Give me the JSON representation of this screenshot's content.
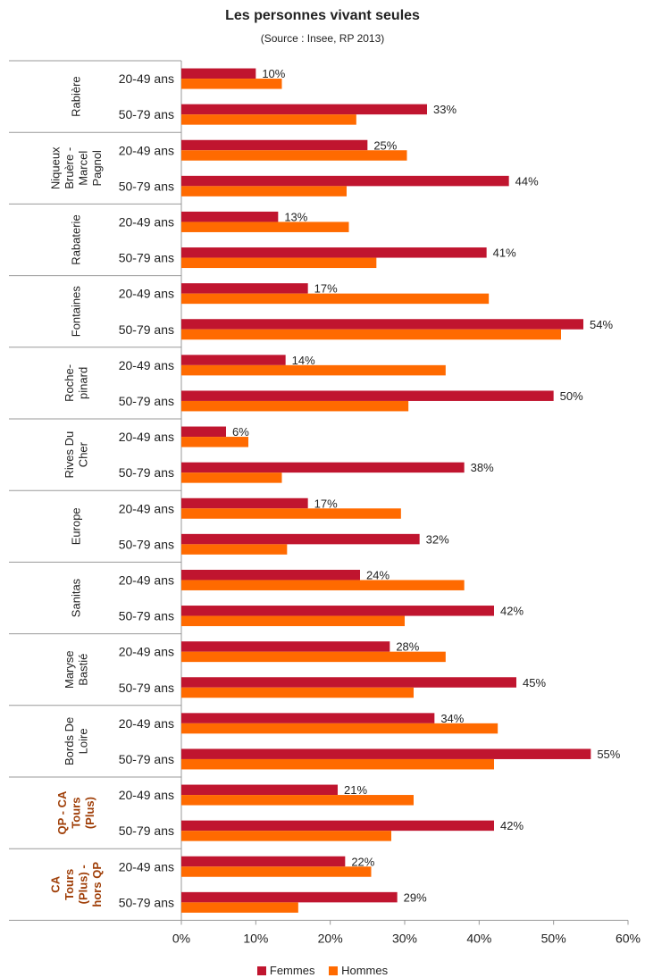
{
  "chart_data": {
    "type": "bar",
    "title": "Les personnes vivant seules",
    "subtitle": "(Source : Insee, RP 2013)",
    "orientation": "horizontal",
    "xlim": [
      0,
      60
    ],
    "xticks": [
      "0%",
      "10%",
      "20%",
      "30%",
      "40%",
      "50%",
      "60%"
    ],
    "groups": [
      {
        "label": "Rabière",
        "highlight": false
      },
      {
        "label": "Niqueux Bruère - Marcel Pagnol",
        "highlight": false
      },
      {
        "label": "Rabaterie",
        "highlight": false
      },
      {
        "label": "Fontaines",
        "highlight": false
      },
      {
        "label": "Roche-pinard",
        "highlight": false
      },
      {
        "label": "Rives Du Cher",
        "highlight": false
      },
      {
        "label": "Europe",
        "highlight": false
      },
      {
        "label": "Sanitas",
        "highlight": false
      },
      {
        "label": "Maryse Bastié",
        "highlight": false
      },
      {
        "label": "Bords De Loire",
        "highlight": false
      },
      {
        "label": "QP - CA Tours (Plus)",
        "highlight": true
      },
      {
        "label": "CA Tours (Plus) - hors QP",
        "highlight": true
      }
    ],
    "group_label_lines": [
      [
        "Rabière"
      ],
      [
        "Niqueux",
        "Bruère -",
        "Marcel",
        "Pagnol"
      ],
      [
        "Rabaterie"
      ],
      [
        "Fontaines"
      ],
      [
        "Roche-",
        "pinard"
      ],
      [
        "Rives Du",
        "Cher"
      ],
      [
        "Europe"
      ],
      [
        "Sanitas"
      ],
      [
        "Maryse",
        "Bastié"
      ],
      [
        "Bords De",
        "Loire"
      ],
      [
        "QP - CA",
        "Tours",
        "(Plus)"
      ],
      [
        "CA",
        "Tours",
        "(Plus) -",
        "hors QP"
      ]
    ],
    "categories": [
      "20-49 ans",
      "50-79 ans"
    ],
    "series": [
      {
        "name": "Femmes",
        "color": "#C0152F",
        "values": [
          [
            10,
            33
          ],
          [
            25,
            44
          ],
          [
            13,
            41
          ],
          [
            17,
            54
          ],
          [
            14,
            50
          ],
          [
            6,
            38
          ],
          [
            17,
            32
          ],
          [
            24,
            42
          ],
          [
            28,
            45
          ],
          [
            34,
            55
          ],
          [
            21,
            42
          ],
          [
            22,
            29
          ]
        ],
        "labels": [
          [
            "10%",
            "33%"
          ],
          [
            "25%",
            "44%"
          ],
          [
            "13%",
            "41%"
          ],
          [
            "17%",
            "54%"
          ],
          [
            "14%",
            "50%"
          ],
          [
            "6%",
            "38%"
          ],
          [
            "17%",
            "32%"
          ],
          [
            "24%",
            "42%"
          ],
          [
            "28%",
            "45%"
          ],
          [
            "34%",
            "55%"
          ],
          [
            "21%",
            "42%"
          ],
          [
            "22%",
            "29%"
          ]
        ]
      },
      {
        "name": "Hommes",
        "color": "#FF6A00",
        "values": [
          [
            13.5,
            23.5
          ],
          [
            30.3,
            22.2
          ],
          [
            22.5,
            26.2
          ],
          [
            41.3,
            51
          ],
          [
            35.5,
            30.5
          ],
          [
            9,
            13.5
          ],
          [
            29.5,
            14.2
          ],
          [
            38,
            30
          ],
          [
            35.5,
            31.2
          ],
          [
            42.5,
            42
          ],
          [
            31.2,
            28.2
          ],
          [
            25.5,
            15.7
          ]
        ]
      }
    ],
    "highlight_color": "#A0400A",
    "legend": [
      "Femmes",
      "Hommes"
    ],
    "legend_position": "bottom",
    "grid": false
  }
}
